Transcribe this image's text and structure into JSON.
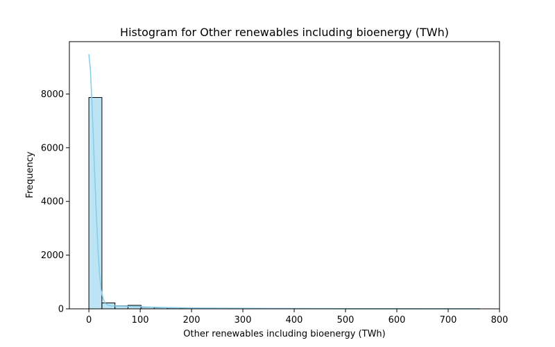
{
  "chart_data": {
    "type": "bar",
    "subtype": "histogram-with-kde",
    "title": "Histogram for Other renewables including bioenergy (TWh)",
    "xlabel": "Other renewables including bioenergy (TWh)",
    "ylabel": "Frequency",
    "xlim": [
      -38,
      800
    ],
    "ylim": [
      0,
      9950
    ],
    "xticks": [
      0,
      100,
      200,
      300,
      400,
      500,
      600,
      700,
      800
    ],
    "yticks": [
      0,
      2000,
      4000,
      6000,
      8000
    ],
    "grid": false,
    "bar_color": "#87CEEB",
    "edge_color": "#000000",
    "kde_color": "#87CEEB",
    "bins": {
      "start": 0,
      "width": 25.4,
      "counts": [
        7870,
        220,
        110,
        130,
        60,
        45,
        35,
        25,
        20,
        18,
        14,
        12,
        10,
        8,
        6,
        5,
        4,
        4,
        3,
        3,
        2,
        2,
        2,
        2,
        1,
        1,
        1,
        1,
        1,
        1
      ]
    },
    "kde": {
      "x": [
        0,
        3,
        6,
        9,
        12,
        15,
        18,
        21,
        24,
        28,
        32,
        38,
        45,
        55,
        70,
        90,
        110,
        140,
        180,
        220,
        280,
        340,
        400,
        500,
        600,
        700,
        762
      ],
      "y": [
        9480,
        8900,
        7700,
        6200,
        4700,
        3300,
        2100,
        1250,
        700,
        360,
        200,
        130,
        110,
        100,
        95,
        85,
        70,
        50,
        38,
        28,
        20,
        15,
        10,
        6,
        4,
        2,
        1
      ]
    }
  }
}
